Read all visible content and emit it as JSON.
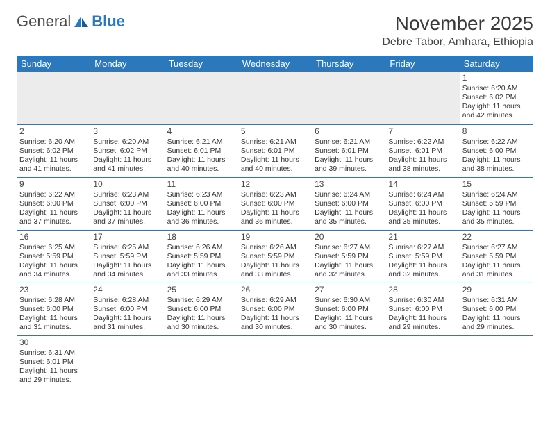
{
  "logo": {
    "word1": "General",
    "word2": "Blue"
  },
  "title": "November 2025",
  "location": "Debre Tabor, Amhara, Ethiopia",
  "colors": {
    "header_bg": "#2b78bd",
    "header_fg": "#ffffff",
    "divider": "#2b78bd",
    "empty_bg": "#ececec",
    "text": "#333333",
    "logo_gray": "#4a4a4a",
    "logo_blue": "#2b78bd"
  },
  "weekdays": [
    "Sunday",
    "Monday",
    "Tuesday",
    "Wednesday",
    "Thursday",
    "Friday",
    "Saturday"
  ],
  "weeks": [
    [
      null,
      null,
      null,
      null,
      null,
      null,
      {
        "n": "1",
        "sr": "6:20 AM",
        "ss": "6:02 PM",
        "dl": "11 hours and 42 minutes."
      }
    ],
    [
      {
        "n": "2",
        "sr": "6:20 AM",
        "ss": "6:02 PM",
        "dl": "11 hours and 41 minutes."
      },
      {
        "n": "3",
        "sr": "6:20 AM",
        "ss": "6:02 PM",
        "dl": "11 hours and 41 minutes."
      },
      {
        "n": "4",
        "sr": "6:21 AM",
        "ss": "6:01 PM",
        "dl": "11 hours and 40 minutes."
      },
      {
        "n": "5",
        "sr": "6:21 AM",
        "ss": "6:01 PM",
        "dl": "11 hours and 40 minutes."
      },
      {
        "n": "6",
        "sr": "6:21 AM",
        "ss": "6:01 PM",
        "dl": "11 hours and 39 minutes."
      },
      {
        "n": "7",
        "sr": "6:22 AM",
        "ss": "6:01 PM",
        "dl": "11 hours and 38 minutes."
      },
      {
        "n": "8",
        "sr": "6:22 AM",
        "ss": "6:00 PM",
        "dl": "11 hours and 38 minutes."
      }
    ],
    [
      {
        "n": "9",
        "sr": "6:22 AM",
        "ss": "6:00 PM",
        "dl": "11 hours and 37 minutes."
      },
      {
        "n": "10",
        "sr": "6:23 AM",
        "ss": "6:00 PM",
        "dl": "11 hours and 37 minutes."
      },
      {
        "n": "11",
        "sr": "6:23 AM",
        "ss": "6:00 PM",
        "dl": "11 hours and 36 minutes."
      },
      {
        "n": "12",
        "sr": "6:23 AM",
        "ss": "6:00 PM",
        "dl": "11 hours and 36 minutes."
      },
      {
        "n": "13",
        "sr": "6:24 AM",
        "ss": "6:00 PM",
        "dl": "11 hours and 35 minutes."
      },
      {
        "n": "14",
        "sr": "6:24 AM",
        "ss": "6:00 PM",
        "dl": "11 hours and 35 minutes."
      },
      {
        "n": "15",
        "sr": "6:24 AM",
        "ss": "5:59 PM",
        "dl": "11 hours and 35 minutes."
      }
    ],
    [
      {
        "n": "16",
        "sr": "6:25 AM",
        "ss": "5:59 PM",
        "dl": "11 hours and 34 minutes."
      },
      {
        "n": "17",
        "sr": "6:25 AM",
        "ss": "5:59 PM",
        "dl": "11 hours and 34 minutes."
      },
      {
        "n": "18",
        "sr": "6:26 AM",
        "ss": "5:59 PM",
        "dl": "11 hours and 33 minutes."
      },
      {
        "n": "19",
        "sr": "6:26 AM",
        "ss": "5:59 PM",
        "dl": "11 hours and 33 minutes."
      },
      {
        "n": "20",
        "sr": "6:27 AM",
        "ss": "5:59 PM",
        "dl": "11 hours and 32 minutes."
      },
      {
        "n": "21",
        "sr": "6:27 AM",
        "ss": "5:59 PM",
        "dl": "11 hours and 32 minutes."
      },
      {
        "n": "22",
        "sr": "6:27 AM",
        "ss": "5:59 PM",
        "dl": "11 hours and 31 minutes."
      }
    ],
    [
      {
        "n": "23",
        "sr": "6:28 AM",
        "ss": "6:00 PM",
        "dl": "11 hours and 31 minutes."
      },
      {
        "n": "24",
        "sr": "6:28 AM",
        "ss": "6:00 PM",
        "dl": "11 hours and 31 minutes."
      },
      {
        "n": "25",
        "sr": "6:29 AM",
        "ss": "6:00 PM",
        "dl": "11 hours and 30 minutes."
      },
      {
        "n": "26",
        "sr": "6:29 AM",
        "ss": "6:00 PM",
        "dl": "11 hours and 30 minutes."
      },
      {
        "n": "27",
        "sr": "6:30 AM",
        "ss": "6:00 PM",
        "dl": "11 hours and 30 minutes."
      },
      {
        "n": "28",
        "sr": "6:30 AM",
        "ss": "6:00 PM",
        "dl": "11 hours and 29 minutes."
      },
      {
        "n": "29",
        "sr": "6:31 AM",
        "ss": "6:00 PM",
        "dl": "11 hours and 29 minutes."
      }
    ],
    [
      {
        "n": "30",
        "sr": "6:31 AM",
        "ss": "6:01 PM",
        "dl": "11 hours and 29 minutes."
      },
      null,
      null,
      null,
      null,
      null,
      null
    ]
  ],
  "labels": {
    "sunrise": "Sunrise:",
    "sunset": "Sunset:",
    "daylight": "Daylight:"
  }
}
